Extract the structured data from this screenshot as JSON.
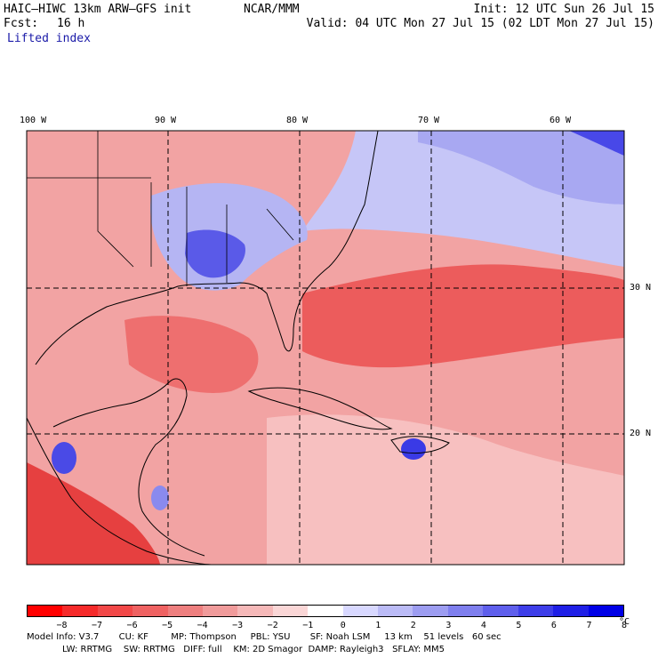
{
  "header": {
    "model": "HAIC–HIWC 13km ARW–GFS init",
    "org": "NCAR/MMM",
    "init": "Init: 12 UTC Sun 26 Jul 15",
    "fcst_label": "Fcst:",
    "fcst_value": "16 h",
    "valid": "Valid: 04 UTC Mon 27 Jul 15 (02 LDT Mon 27 Jul 15)",
    "field": "Lifted index"
  },
  "axes": {
    "lon_labels": [
      "100 W",
      "90 W",
      "80 W",
      "70 W",
      "60 W"
    ],
    "lat_labels": [
      "30 N",
      "20 N"
    ]
  },
  "colorbar": {
    "colors": [
      "#ff0000",
      "#f52a2a",
      "#f24848",
      "#ef6262",
      "#ee7f7f",
      "#f09b9b",
      "#f5b8b8",
      "#fad6d6",
      "#ffffff",
      "#d8d8ff",
      "#bbbbf6",
      "#9d9df1",
      "#7f7fee",
      "#5f5fec",
      "#3e3ee9",
      "#1f1fe6",
      "#0000e6"
    ],
    "labels": [
      "−8",
      "−7",
      "−6",
      "−5",
      "−4",
      "−3",
      "−2",
      "−1",
      "0",
      "1",
      "2",
      "3",
      "4",
      "5",
      "6",
      "7",
      "8"
    ],
    "unit": "°C"
  },
  "footer": {
    "line1": "Model Info: V3.7       CU: KF        MP: Thompson     PBL: YSU       SF: Noah LSM     13 km    51 levels   60 sec",
    "line2": "LW: RRTMG    SW: RRTMG   DIFF: full    KM: 2D Smagor  DAMP: Rayleigh3   SFLAY: MM5"
  }
}
